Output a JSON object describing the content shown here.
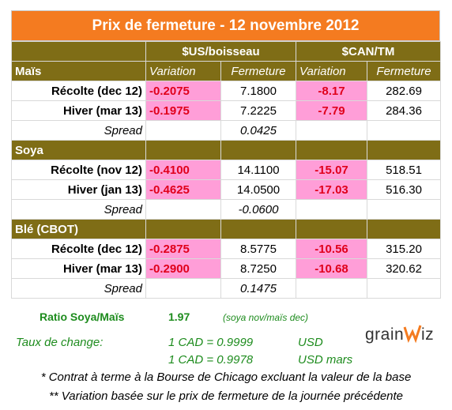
{
  "title": "Prix de fermeture - 12 novembre 2012",
  "headers": {
    "usd": "$US/boisseau",
    "cad": "$CAN/TM",
    "variation": "Variation",
    "fermeture": "Fermeture"
  },
  "sections": [
    {
      "name": "Maïs",
      "rows": [
        {
          "label": "Récolte (dec 12)",
          "usd_var": "-0.2075",
          "usd_close": "7.1800",
          "cad_var": "-8.17",
          "cad_close": "282.69"
        },
        {
          "label": "Hiver (mar 13)",
          "usd_var": "-0.1975",
          "usd_close": "7.2225",
          "cad_var": "-7.79",
          "cad_close": "284.36"
        }
      ],
      "spread_label": "Spread",
      "spread": "0.0425"
    },
    {
      "name": "Soya",
      "rows": [
        {
          "label": "Récolte (nov 12)",
          "usd_var": "-0.4100",
          "usd_close": "14.1100",
          "cad_var": "-15.07",
          "cad_close": "518.51"
        },
        {
          "label": "Hiver (jan 13)",
          "usd_var": "-0.4625",
          "usd_close": "14.0500",
          "cad_var": "-17.03",
          "cad_close": "516.30"
        }
      ],
      "spread_label": "Spread",
      "spread": "-0.0600"
    },
    {
      "name": "Blé (CBOT)",
      "rows": [
        {
          "label": "Récolte (dec 12)",
          "usd_var": "-0.2875",
          "usd_close": "8.5775",
          "cad_var": "-10.56",
          "cad_close": "315.20"
        },
        {
          "label": "Hiver (mar 13)",
          "usd_var": "-0.2900",
          "usd_close": "8.7250",
          "cad_var": "-10.68",
          "cad_close": "320.62"
        }
      ],
      "spread_label": "Spread",
      "spread": "0.1475"
    }
  ],
  "ratio": {
    "label": "Ratio Soya/Maïs",
    "value": "1.97",
    "note": "(soya nov/maïs dec)"
  },
  "exchange": {
    "label": "Taux de change:",
    "rate1": "1 CAD =  0.9999",
    "unit1": "USD",
    "rate2": "1 CAD =  0.9978",
    "unit2": "USD mars"
  },
  "logo": "GrainWiz",
  "notes": [
    "* Contrat à terme à la Bourse de Chicago excluant la valeur de la base",
    "** Variation basée sur le prix de fermeture de la journée précédente"
  ],
  "colors": {
    "title_bg": "#f47b20",
    "section_bg": "#7f6d16",
    "variation_bg": "#ff9ed8",
    "variation_text": "#e0001b",
    "ratio_text": "#1e8c1e"
  }
}
